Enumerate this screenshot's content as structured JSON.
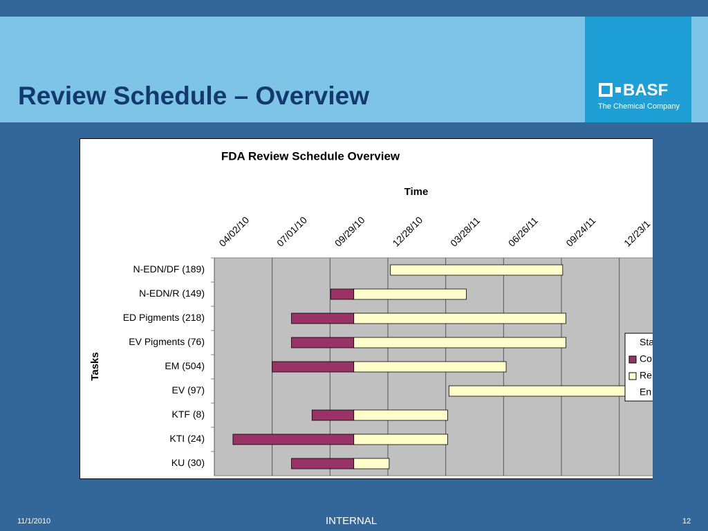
{
  "slide": {
    "title": "Review Schedule – Overview",
    "logo": "BASF",
    "tagline": "The Chemical Company",
    "date": "11/1/2010",
    "classification": "INTERNAL",
    "page": "12"
  },
  "chart_data": {
    "type": "gantt",
    "title": "FDA Review Schedule Overview",
    "x_label": "Time",
    "y_label": "Tasks",
    "categories": [
      "N-EDN/DF (189)",
      "N-EDN/R (149)",
      "ED Pigments (218)",
      "EV Pigments (76)",
      "EM (504)",
      "EV (97)",
      "KTF (8)",
      "KTI (24)",
      "KU (30)"
    ],
    "series": [
      {
        "name": "Sta",
        "color": "none",
        "values": [
          40544,
          40451,
          40390,
          40390,
          40360,
          40635,
          40422,
          40299,
          40390
        ]
      },
      {
        "name": "Co",
        "color": "#993366",
        "values": [
          null,
          36,
          97,
          97,
          127,
          null,
          65,
          188,
          97
        ]
      },
      {
        "name": "Re",
        "color": "#ffffcc",
        "values": [
          268,
          175,
          330,
          330,
          237,
          300,
          146,
          146,
          55
        ]
      },
      {
        "name": "En",
        "color": "#ffffff",
        "values": [
          null,
          null,
          null,
          null,
          null,
          null,
          null,
          null,
          null
        ]
      }
    ],
    "xlim": [
      40270,
      40952
    ],
    "xticks": [
      {
        "value": 40270,
        "label": "04/02/10"
      },
      {
        "value": 40360,
        "label": "07/01/10"
      },
      {
        "value": 40450,
        "label": "09/29/10"
      },
      {
        "value": 40540,
        "label": "12/28/10"
      },
      {
        "value": 40630,
        "label": "03/28/11"
      },
      {
        "value": 40720,
        "label": "06/26/11"
      },
      {
        "value": 40810,
        "label": "09/24/11"
      },
      {
        "value": 40900,
        "label": "12/23/1"
      }
    ],
    "grid": true,
    "legend": "right"
  }
}
